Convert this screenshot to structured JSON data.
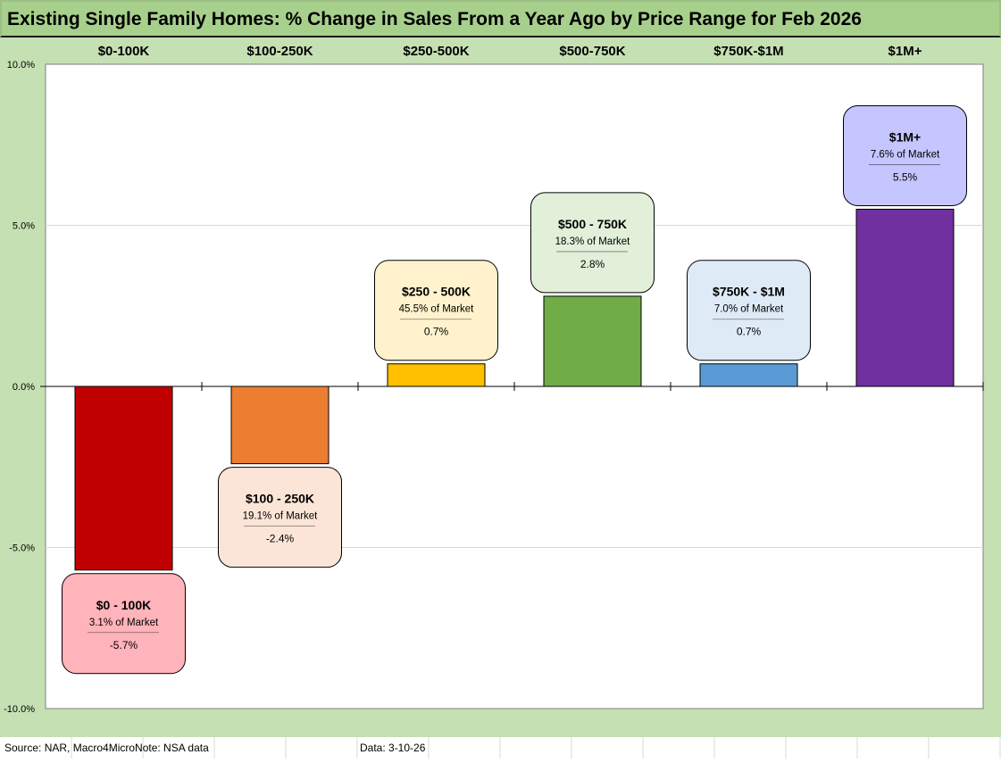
{
  "title": "Existing Single Family Homes: % Change in Sales From a Year Ago by Price Range for Feb 2026",
  "footer": {
    "source": "Source: NAR, Macro4MicroNote: NSA data",
    "date": "Data: 3-10-26"
  },
  "colors": {
    "frame": "#c5e0b3",
    "title_bar": "#a8d08d"
  },
  "chart_data": {
    "type": "bar",
    "title": "Existing Single Family Homes: % Change in Sales From a Year Ago by Price Range for Feb 2026",
    "categories": [
      "$0-100K",
      "$100-250K",
      "$250-500K",
      "$500-750K",
      "$750K-$1M",
      "$1M+"
    ],
    "values": [
      -5.7,
      -2.4,
      0.7,
      2.8,
      0.7,
      5.5
    ],
    "ylim": [
      -10,
      10
    ],
    "yticks": [
      -10,
      -5,
      0,
      5,
      10
    ],
    "ytick_labels": [
      "-10.0%",
      "-5.0%",
      "0.0%",
      "5.0%",
      "10.0%"
    ],
    "grid": true,
    "xlabel": "",
    "ylabel": "",
    "bar_colors": [
      "#c00000",
      "#ed7d31",
      "#ffc000",
      "#70ad47",
      "#5b9bd5",
      "#7030a0"
    ],
    "annotations": [
      {
        "title": "$0 - 100K",
        "share": "3.1% of Market",
        "value_label": "-5.7%",
        "fill": "#ffb3ba"
      },
      {
        "title": "$100 - 250K",
        "share": "19.1% of Market",
        "value_label": "-2.4%",
        "fill": "#fbe5d6"
      },
      {
        "title": "$250 - 500K",
        "share": "45.5% of Market",
        "value_label": "0.7%",
        "fill": "#fff2cc"
      },
      {
        "title": "$500 - 750K",
        "share": "18.3% of Market",
        "value_label": "2.8%",
        "fill": "#e2f0d9"
      },
      {
        "title": "$750K - $1M",
        "share": "7.0% of Market",
        "value_label": "0.7%",
        "fill": "#deebf7"
      },
      {
        "title": "$1M+",
        "share": "7.6% of Market",
        "value_label": "5.5%",
        "fill": "#c5c5ff"
      }
    ]
  }
}
